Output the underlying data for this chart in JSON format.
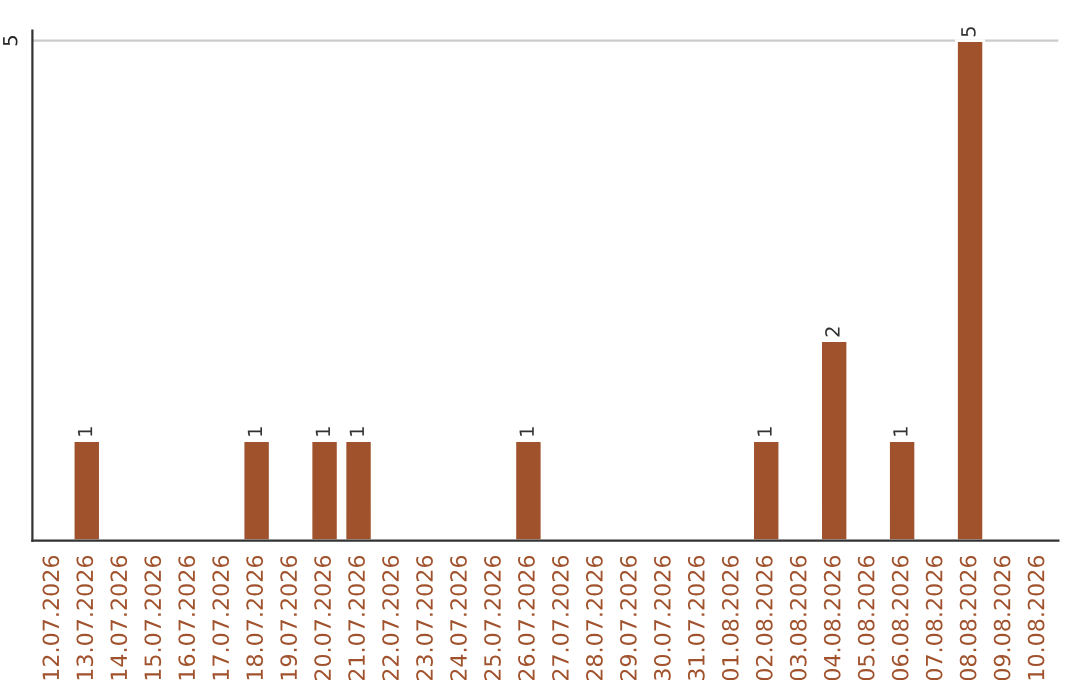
{
  "chart_data": {
    "type": "bar",
    "categories": [
      "12.07.2026",
      "13.07.2026",
      "14.07.2026",
      "15.07.2026",
      "16.07.2026",
      "17.07.2026",
      "18.07.2026",
      "19.07.2026",
      "20.07.2026",
      "21.07.2026",
      "22.07.2026",
      "23.07.2026",
      "24.07.2026",
      "25.07.2026",
      "26.07.2026",
      "27.07.2026",
      "28.07.2026",
      "29.07.2026",
      "30.07.2026",
      "31.07.2026",
      "01.08.2026",
      "02.08.2026",
      "03.08.2026",
      "04.08.2026",
      "05.08.2026",
      "06.08.2026",
      "07.08.2026",
      "08.08.2026",
      "09.08.2026",
      "10.08.2026"
    ],
    "values": [
      null,
      1,
      null,
      null,
      null,
      null,
      1,
      null,
      1,
      1,
      null,
      null,
      null,
      null,
      1,
      null,
      null,
      null,
      null,
      null,
      null,
      1,
      null,
      2,
      null,
      1,
      null,
      5,
      null,
      null
    ],
    "color": "#a0522d",
    "ylim": [
      0,
      5.1
    ],
    "yticks": [
      5
    ],
    "grid": "y",
    "data_labels": true
  }
}
